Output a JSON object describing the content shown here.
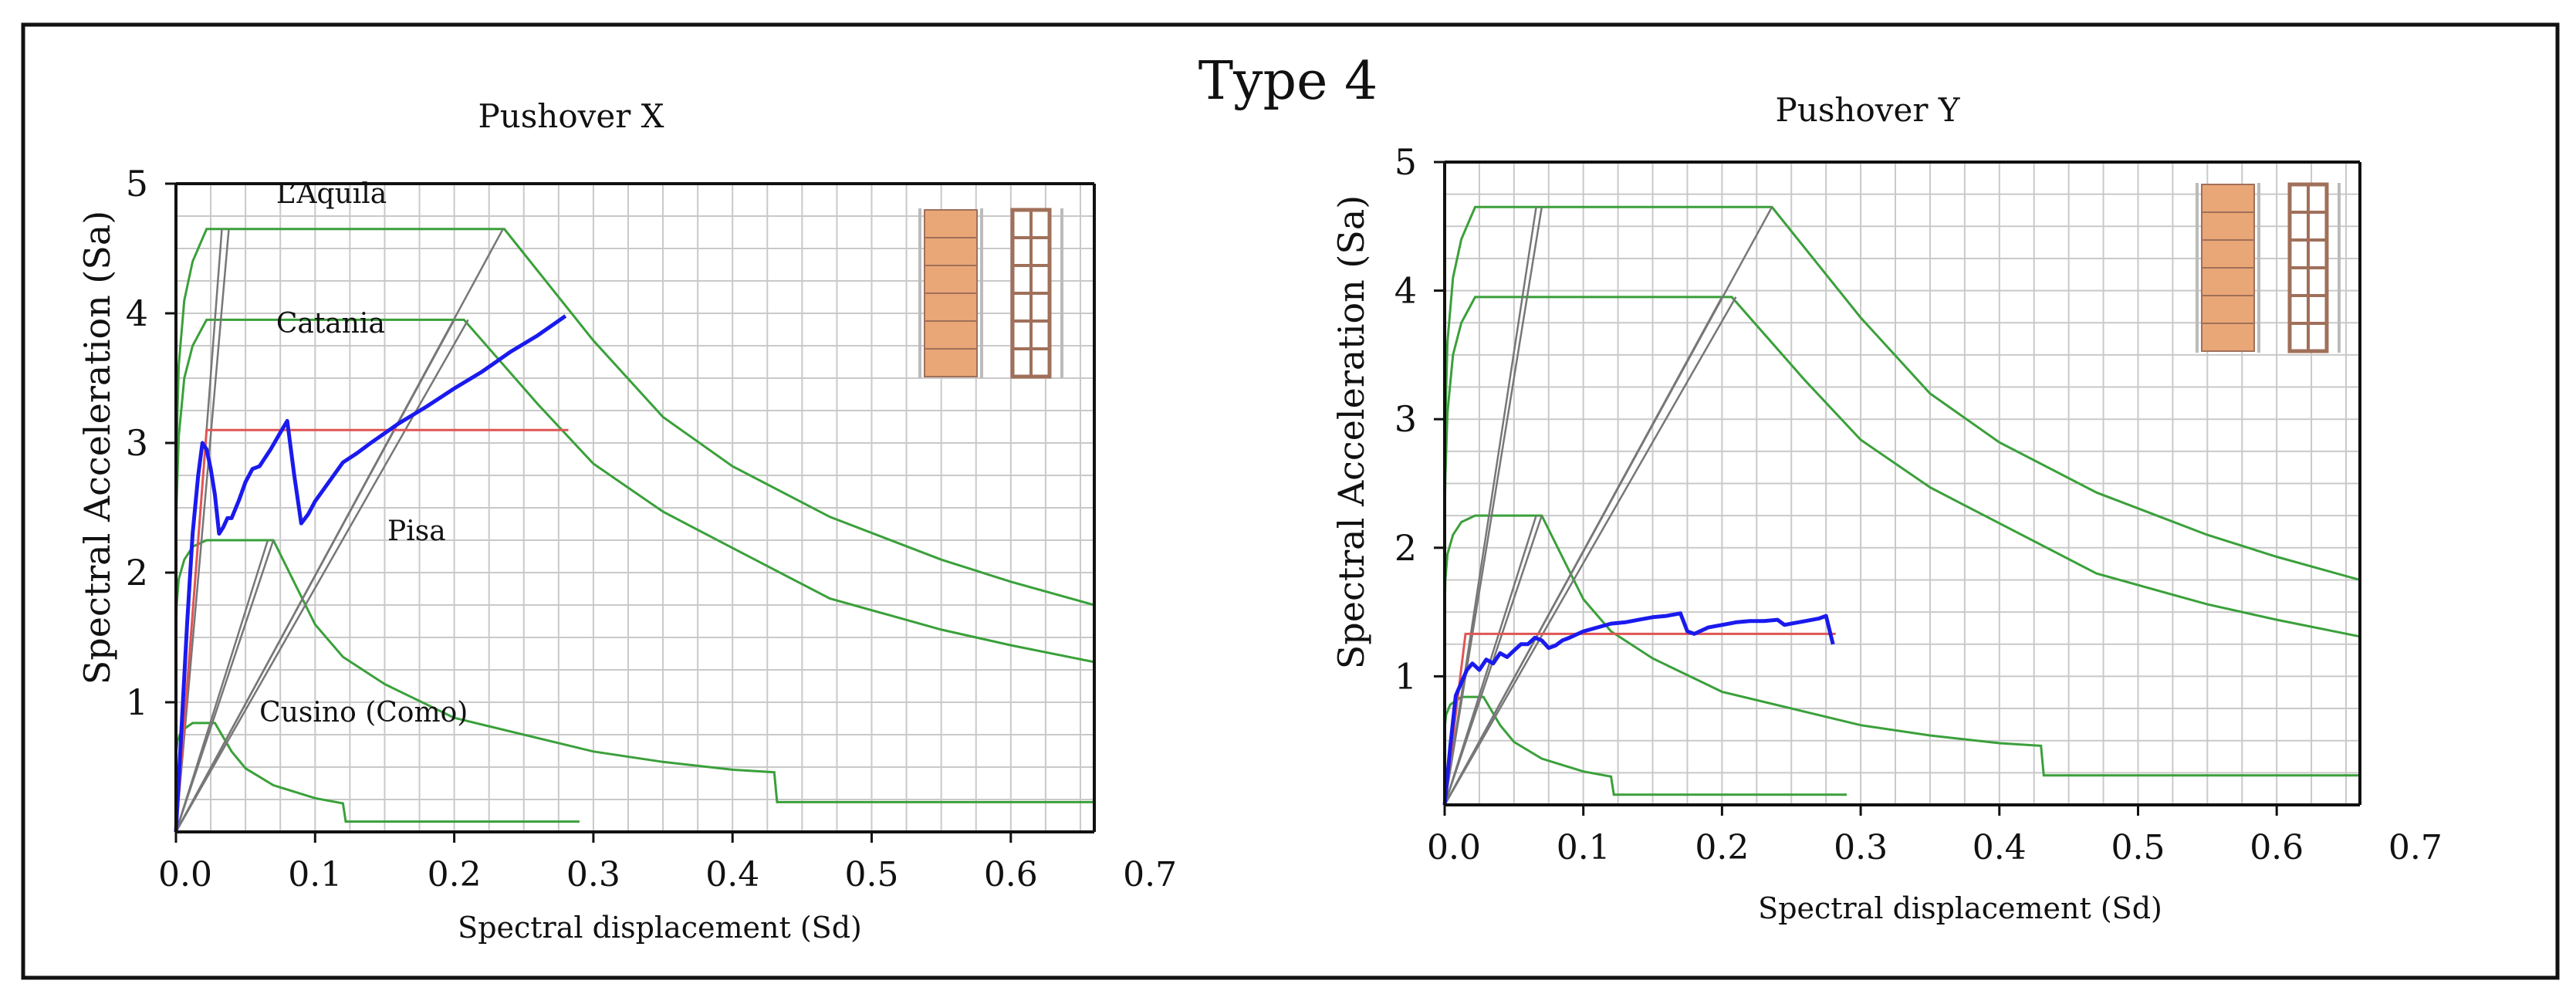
{
  "figure": {
    "title": "Type 4",
    "colors": {
      "spectrum": "#3aa03a",
      "capacity": "#1a1aee",
      "bilinear": "#e05555",
      "demand_line": "#777777",
      "grid": "#c9c9c9",
      "brick": "#e9a777",
      "frame": "#111111"
    }
  },
  "chart_data": [
    {
      "type": "line",
      "title": "Pushover X",
      "xlabel": "Spectral displacement (Sd)",
      "ylabel": "Spectral Acceleration (Sa)",
      "xlim": [
        0,
        0.66
      ],
      "ylim": [
        0,
        5
      ],
      "xticks": [
        0.0,
        0.1,
        0.2,
        0.3,
        0.4,
        0.5,
        0.6,
        0.7
      ],
      "xtick_labels": [
        "0.0",
        "0.1",
        "0.2",
        "0.3",
        "0.4",
        "0.5",
        "0.6",
        "0.7"
      ],
      "yticks": [
        1,
        2,
        3,
        4,
        5
      ],
      "ytick_labels": [
        "1",
        "2",
        "3",
        "4",
        "5"
      ],
      "grid": true,
      "annotations": [
        {
          "text": "L’Aquila",
          "x": 0.072,
          "y": 4.85
        },
        {
          "text": "Catania",
          "x": 0.072,
          "y": 3.85
        },
        {
          "text": "Pisa",
          "x": 0.152,
          "y": 2.25
        },
        {
          "text": "Cusino (Como)",
          "x": 0.06,
          "y": 0.85
        }
      ],
      "series": [
        {
          "name": "L'Aquila spectrum",
          "role": "spectrum",
          "x": [
            0,
            0.0005,
            0.002,
            0.006,
            0.012,
            0.022,
            0.236,
            0.3,
            0.35,
            0.4,
            0.47,
            0.55,
            0.6,
            0.66
          ],
          "y": [
            2.55,
            3.0,
            3.6,
            4.1,
            4.4,
            4.65,
            4.65,
            3.79,
            3.2,
            2.82,
            2.43,
            2.1,
            1.93,
            1.75
          ]
        },
        {
          "name": "Catania spectrum",
          "role": "spectrum",
          "x": [
            0,
            0.0005,
            0.002,
            0.006,
            0.012,
            0.022,
            0.207,
            0.26,
            0.3,
            0.35,
            0.4,
            0.47,
            0.55,
            0.6,
            0.66
          ],
          "y": [
            2.2,
            2.55,
            3.05,
            3.5,
            3.75,
            3.95,
            3.95,
            3.3,
            2.84,
            2.47,
            2.19,
            1.8,
            1.56,
            1.44,
            1.31
          ]
        },
        {
          "name": "Pisa spectrum",
          "role": "spectrum",
          "x": [
            0,
            0.0005,
            0.002,
            0.006,
            0.012,
            0.022,
            0.07,
            0.1,
            0.12,
            0.15,
            0.2,
            0.3,
            0.35,
            0.4,
            0.43,
            0.432,
            0.45,
            0.55,
            0.66
          ],
          "y": [
            1.5,
            1.75,
            1.95,
            2.1,
            2.2,
            2.25,
            2.25,
            1.6,
            1.35,
            1.14,
            0.88,
            0.62,
            0.54,
            0.48,
            0.46,
            0.23,
            0.23,
            0.23,
            0.23
          ]
        },
        {
          "name": "Cusino (Como) spectrum",
          "role": "spectrum",
          "x": [
            0,
            0.001,
            0.004,
            0.012,
            0.028,
            0.04,
            0.05,
            0.07,
            0.1,
            0.12,
            0.122,
            0.2,
            0.29
          ],
          "y": [
            0.6,
            0.7,
            0.78,
            0.84,
            0.84,
            0.62,
            0.49,
            0.36,
            0.26,
            0.22,
            0.08,
            0.08,
            0.08
          ]
        },
        {
          "name": "Demand line 1",
          "role": "demand",
          "x": [
            0,
            0.033
          ],
          "y": [
            0,
            4.65
          ]
        },
        {
          "name": "Demand line 2",
          "role": "demand",
          "x": [
            0,
            0.038
          ],
          "y": [
            0,
            4.65
          ]
        },
        {
          "name": "Demand line 3",
          "role": "demand",
          "x": [
            0,
            0.2
          ],
          "y": [
            0,
            3.95
          ]
        },
        {
          "name": "Demand line 4",
          "role": "demand",
          "x": [
            0,
            0.21
          ],
          "y": [
            0,
            3.95
          ]
        },
        {
          "name": "Demand line 5",
          "role": "demand",
          "x": [
            0,
            0.235
          ],
          "y": [
            0,
            4.65
          ]
        },
        {
          "name": "Demand line 6",
          "role": "demand",
          "x": [
            0,
            0.066
          ],
          "y": [
            0,
            2.25
          ]
        },
        {
          "name": "Demand line 7",
          "role": "demand",
          "x": [
            0,
            0.07
          ],
          "y": [
            0,
            2.25
          ]
        },
        {
          "name": "Bilinear capacity",
          "role": "bilinear",
          "x": [
            0,
            0.022,
            0.282
          ],
          "y": [
            0,
            3.1,
            3.1
          ]
        },
        {
          "name": "Pushover curve X",
          "role": "capacity",
          "x": [
            0,
            0.004,
            0.008,
            0.012,
            0.016,
            0.019,
            0.022,
            0.025,
            0.028,
            0.031,
            0.034,
            0.037,
            0.04,
            0.045,
            0.05,
            0.055,
            0.06,
            0.068,
            0.075,
            0.08,
            0.085,
            0.09,
            0.095,
            0.1,
            0.11,
            0.12,
            0.13,
            0.14,
            0.16,
            0.18,
            0.2,
            0.22,
            0.24,
            0.26,
            0.28
          ],
          "y": [
            0,
            0.8,
            1.6,
            2.3,
            2.75,
            3.0,
            2.95,
            2.8,
            2.6,
            2.3,
            2.35,
            2.42,
            2.42,
            2.55,
            2.7,
            2.8,
            2.82,
            2.95,
            3.08,
            3.17,
            2.75,
            2.38,
            2.45,
            2.55,
            2.7,
            2.85,
            2.92,
            3.0,
            3.15,
            3.28,
            3.42,
            3.55,
            3.7,
            3.83,
            3.98
          ]
        }
      ],
      "inset_icon": "masonry-wall-section"
    },
    {
      "type": "line",
      "title": "Pushover Y",
      "xlabel": "Spectral displacement (Sd)",
      "ylabel": "Spectral Acceleration (Sa)",
      "xlim": [
        0,
        0.66
      ],
      "ylim": [
        0,
        5
      ],
      "xticks": [
        0.0,
        0.1,
        0.2,
        0.3,
        0.4,
        0.5,
        0.6,
        0.7
      ],
      "xtick_labels": [
        "0.0",
        "0.1",
        "0.2",
        "0.3",
        "0.4",
        "0.5",
        "0.6",
        "0.7"
      ],
      "yticks": [
        1,
        2,
        3,
        4,
        5
      ],
      "ytick_labels": [
        "1",
        "2",
        "3",
        "4",
        "5"
      ],
      "grid": true,
      "annotations": [],
      "series": [
        {
          "name": "L'Aquila spectrum",
          "role": "spectrum",
          "x": [
            0,
            0.0005,
            0.002,
            0.006,
            0.012,
            0.022,
            0.236,
            0.3,
            0.35,
            0.4,
            0.47,
            0.55,
            0.6,
            0.66
          ],
          "y": [
            2.55,
            3.0,
            3.6,
            4.1,
            4.4,
            4.65,
            4.65,
            3.79,
            3.2,
            2.82,
            2.43,
            2.1,
            1.93,
            1.75
          ]
        },
        {
          "name": "Catania spectrum",
          "role": "spectrum",
          "x": [
            0,
            0.0005,
            0.002,
            0.006,
            0.012,
            0.022,
            0.207,
            0.26,
            0.3,
            0.35,
            0.4,
            0.47,
            0.55,
            0.6,
            0.66
          ],
          "y": [
            2.2,
            2.55,
            3.05,
            3.5,
            3.75,
            3.95,
            3.95,
            3.3,
            2.84,
            2.47,
            2.19,
            1.8,
            1.56,
            1.44,
            1.31
          ]
        },
        {
          "name": "Pisa spectrum",
          "role": "spectrum",
          "x": [
            0,
            0.0005,
            0.002,
            0.006,
            0.012,
            0.022,
            0.07,
            0.1,
            0.12,
            0.15,
            0.2,
            0.3,
            0.35,
            0.4,
            0.43,
            0.432,
            0.45,
            0.55,
            0.66
          ],
          "y": [
            1.5,
            1.75,
            1.95,
            2.1,
            2.2,
            2.25,
            2.25,
            1.6,
            1.35,
            1.14,
            0.88,
            0.62,
            0.54,
            0.48,
            0.46,
            0.23,
            0.23,
            0.23,
            0.23
          ]
        },
        {
          "name": "Cusino (Como) spectrum",
          "role": "spectrum",
          "x": [
            0,
            0.001,
            0.004,
            0.012,
            0.028,
            0.04,
            0.05,
            0.07,
            0.1,
            0.12,
            0.122,
            0.2,
            0.29
          ],
          "y": [
            0.6,
            0.7,
            0.78,
            0.84,
            0.84,
            0.62,
            0.49,
            0.36,
            0.26,
            0.22,
            0.08,
            0.08,
            0.08
          ]
        },
        {
          "name": "Demand line 1",
          "role": "demand",
          "x": [
            0,
            0.066
          ],
          "y": [
            0,
            4.65
          ]
        },
        {
          "name": "Demand line 2",
          "role": "demand",
          "x": [
            0,
            0.07
          ],
          "y": [
            0,
            4.65
          ]
        },
        {
          "name": "Demand line 3",
          "role": "demand",
          "x": [
            0,
            0.2
          ],
          "y": [
            0,
            3.95
          ]
        },
        {
          "name": "Demand line 4",
          "role": "demand",
          "x": [
            0,
            0.21
          ],
          "y": [
            0,
            3.95
          ]
        },
        {
          "name": "Demand line 5",
          "role": "demand",
          "x": [
            0,
            0.236
          ],
          "y": [
            0,
            4.65
          ]
        },
        {
          "name": "Demand line 6",
          "role": "demand",
          "x": [
            0,
            0.066
          ],
          "y": [
            0,
            2.25
          ]
        },
        {
          "name": "Demand line 7",
          "role": "demand",
          "x": [
            0,
            0.07
          ],
          "y": [
            0,
            2.25
          ]
        },
        {
          "name": "Bilinear capacity",
          "role": "bilinear",
          "x": [
            0,
            0.015,
            0.282
          ],
          "y": [
            0,
            1.33,
            1.33
          ]
        },
        {
          "name": "Pushover curve Y",
          "role": "capacity",
          "x": [
            0,
            0.004,
            0.008,
            0.012,
            0.016,
            0.02,
            0.025,
            0.03,
            0.035,
            0.04,
            0.045,
            0.05,
            0.055,
            0.06,
            0.065,
            0.07,
            0.075,
            0.08,
            0.085,
            0.09,
            0.1,
            0.11,
            0.12,
            0.13,
            0.14,
            0.15,
            0.16,
            0.17,
            0.175,
            0.18,
            0.19,
            0.2,
            0.21,
            0.22,
            0.23,
            0.24,
            0.245,
            0.25,
            0.26,
            0.27,
            0.275,
            0.28
          ],
          "y": [
            0,
            0.45,
            0.85,
            0.95,
            1.05,
            1.1,
            1.05,
            1.13,
            1.1,
            1.18,
            1.15,
            1.2,
            1.25,
            1.25,
            1.3,
            1.28,
            1.22,
            1.24,
            1.28,
            1.3,
            1.35,
            1.38,
            1.41,
            1.42,
            1.44,
            1.46,
            1.47,
            1.49,
            1.35,
            1.33,
            1.38,
            1.4,
            1.42,
            1.43,
            1.43,
            1.44,
            1.4,
            1.41,
            1.43,
            1.45,
            1.47,
            1.25
          ]
        }
      ],
      "inset_icon": "masonry-wall-section"
    }
  ]
}
